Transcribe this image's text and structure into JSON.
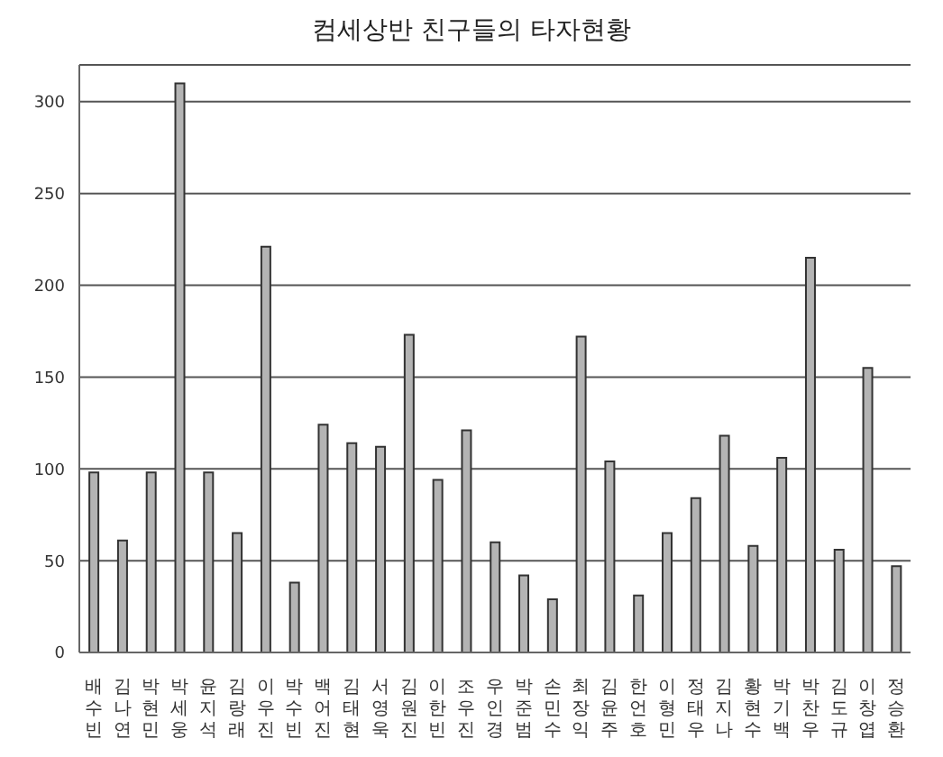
{
  "chart_data": {
    "type": "bar",
    "title": "컴세상반 친구들의 타자현황",
    "categories": [
      "배수빈",
      "김나연",
      "박현민",
      "박세웅",
      "윤지석",
      "김랑래",
      "이우진",
      "박수빈",
      "백어진",
      "김태현",
      "서영욱",
      "김원진",
      "이한빈",
      "조우진",
      "우인경",
      "박준범",
      "손민수",
      "최장익",
      "김윤주",
      "한언호",
      "이형민",
      "정태우",
      "김지나",
      "황현수",
      "박기백",
      "박찬우",
      "김도규",
      "이창엽",
      "정승환"
    ],
    "values": [
      98,
      61,
      98,
      310,
      98,
      65,
      221,
      38,
      124,
      114,
      112,
      173,
      94,
      121,
      60,
      42,
      29,
      172,
      104,
      31,
      65,
      84,
      118,
      58,
      106,
      215,
      56,
      155,
      47
    ],
    "color": "#b4b4b4",
    "ylim": [
      0,
      320
    ],
    "yticks": [
      0,
      50,
      100,
      150,
      200,
      250,
      300
    ],
    "grid": "y"
  }
}
